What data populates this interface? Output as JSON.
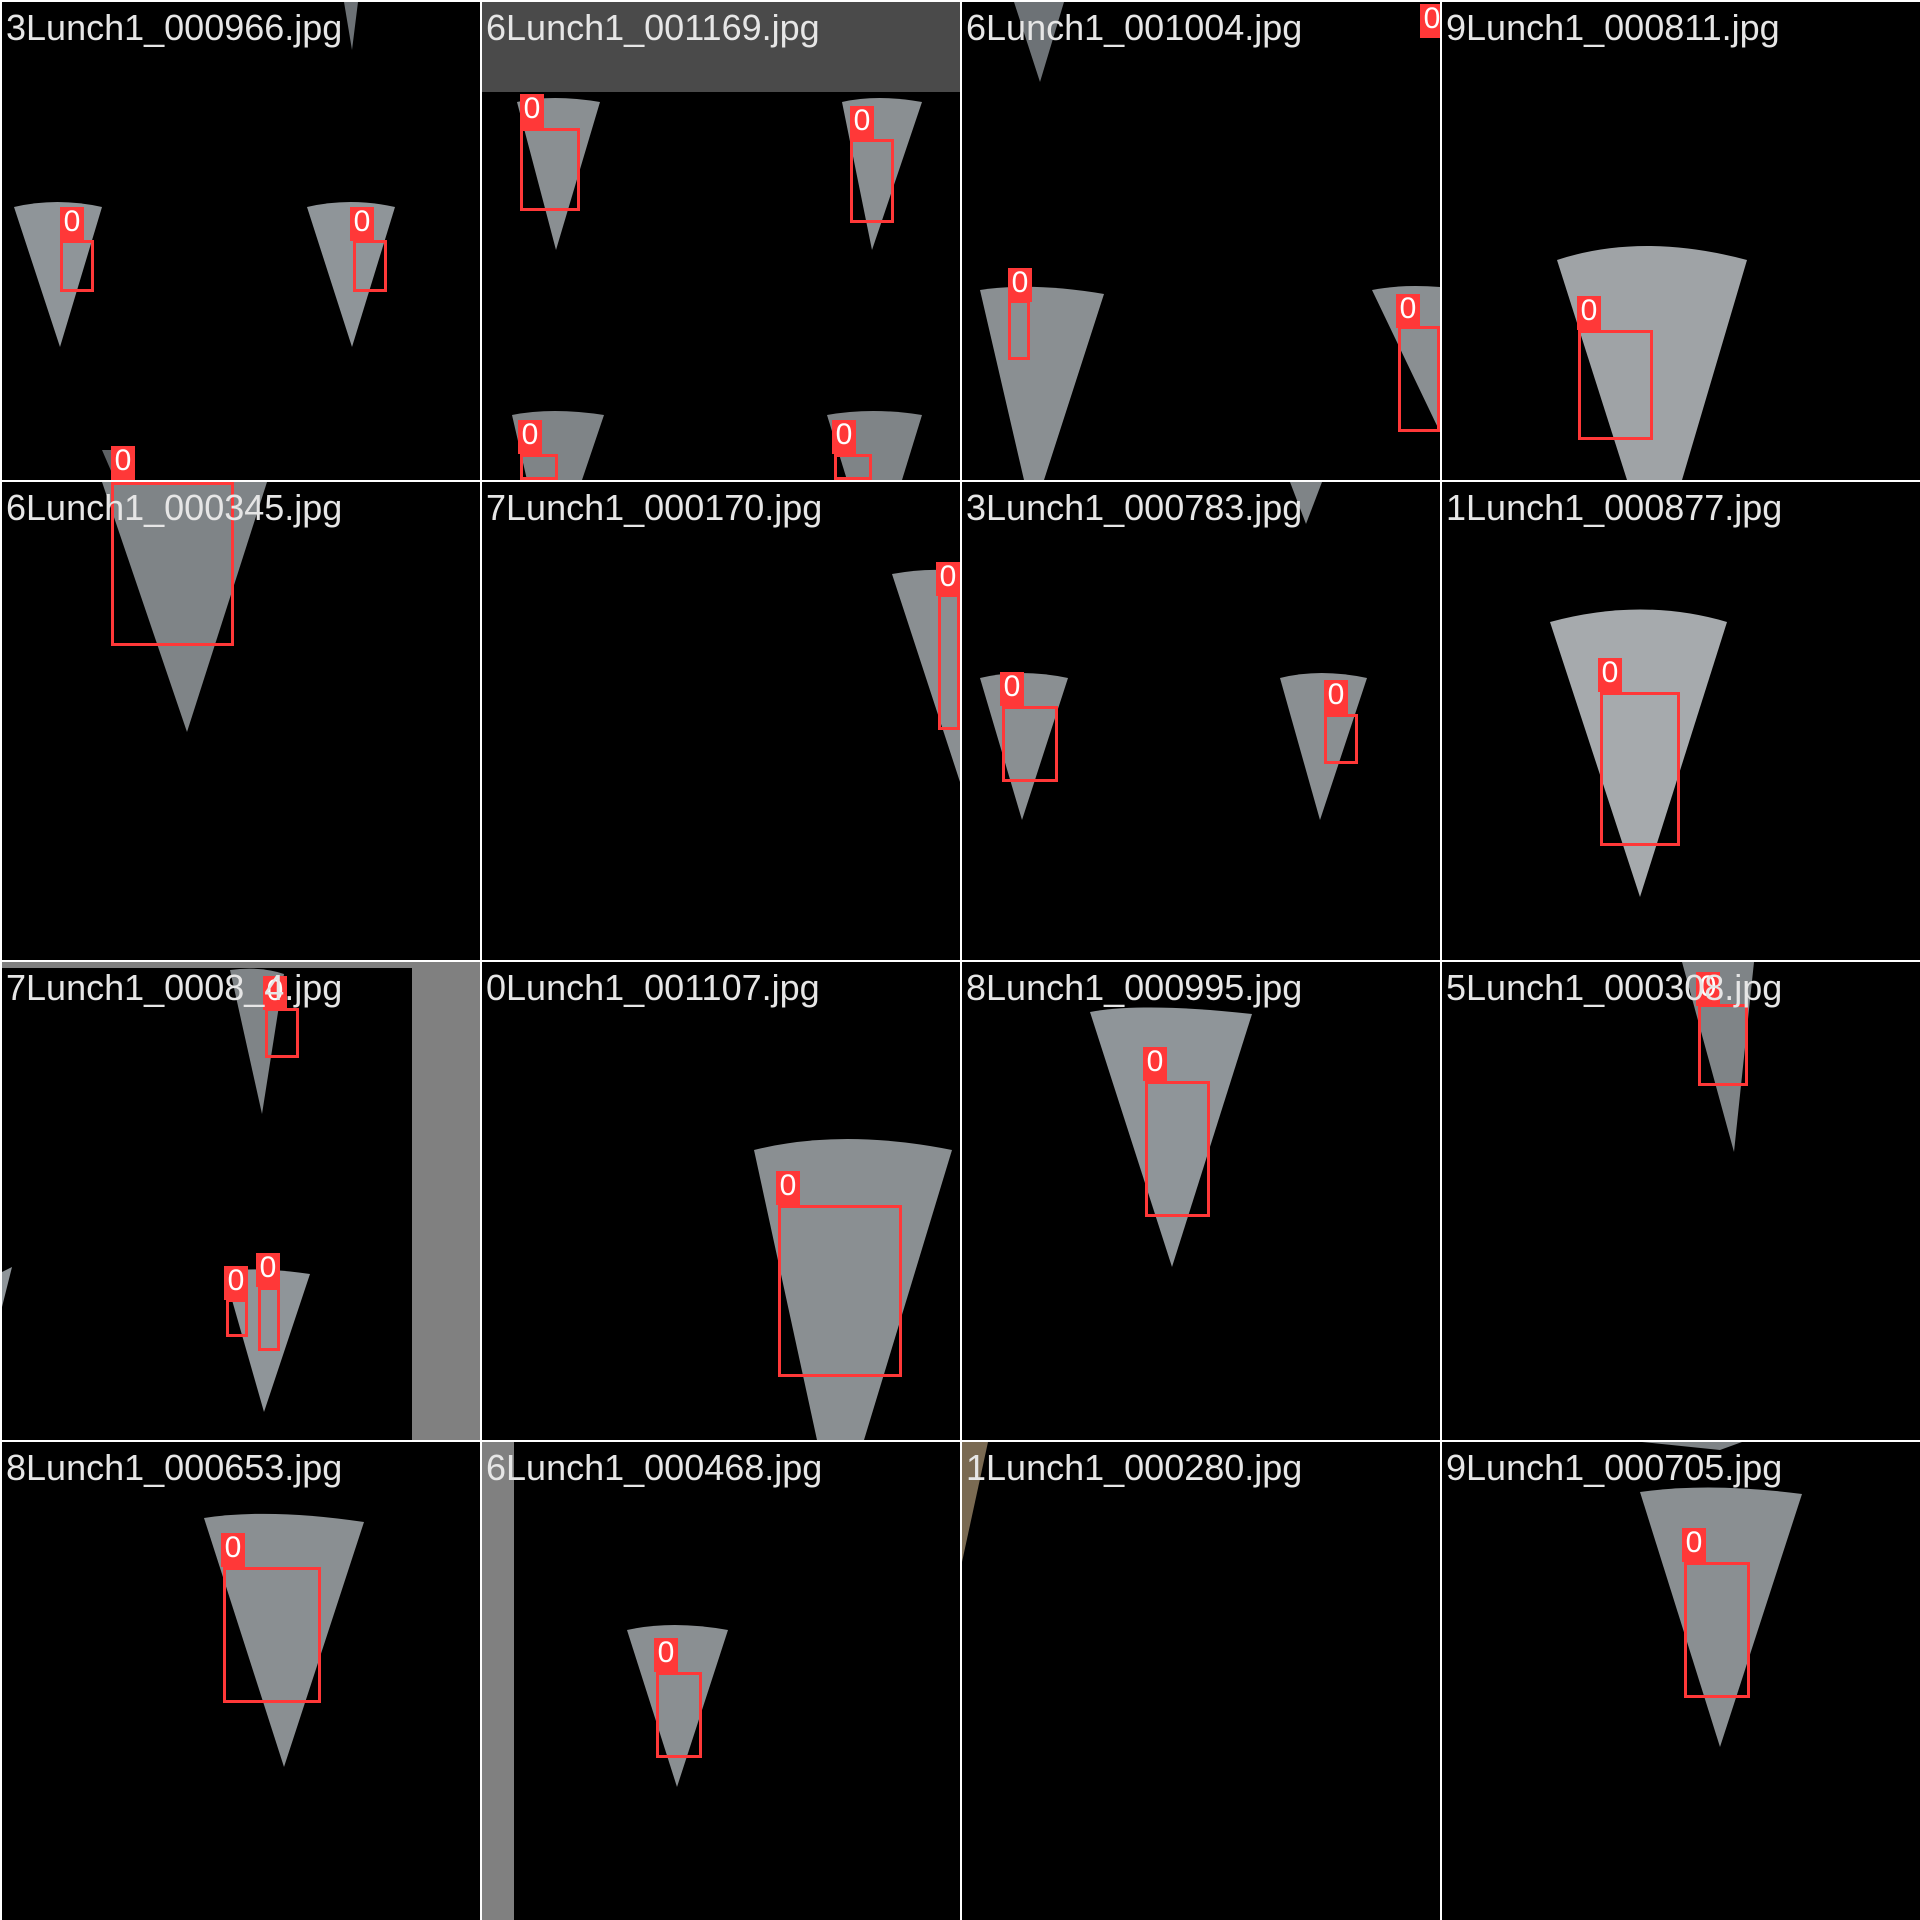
{
  "palette": {
    "box": "#ff3838",
    "label_text": "#ffffff",
    "filename_text": "#e6e6e6",
    "background": "#000000",
    "divider": "#ffffff",
    "pad_gray": "#808080"
  },
  "tiles": [
    {
      "filename": "3Lunch1_000966.jpg",
      "detections": [
        "0",
        "0"
      ]
    },
    {
      "filename": "6Lunch1_001169.jpg",
      "detections": [
        "0",
        "0",
        "0",
        "0"
      ]
    },
    {
      "filename": "6Lunch1_001004.jpg",
      "detections": [
        "0",
        "0",
        "0"
      ]
    },
    {
      "filename": "9Lunch1_000811.jpg",
      "detections": [
        "0"
      ]
    },
    {
      "filename": "6Lunch1_000345.jpg",
      "detections": [
        "0"
      ]
    },
    {
      "filename": "7Lunch1_000170.jpg",
      "detections": [
        "0"
      ]
    },
    {
      "filename": "3Lunch1_000783.jpg",
      "detections": [
        "0",
        "0"
      ]
    },
    {
      "filename": "1Lunch1_000877.jpg",
      "detections": [
        "0"
      ]
    },
    {
      "filename": "7Lunch1_0008_4.jpg",
      "detections": [
        "0",
        "0",
        "0"
      ]
    },
    {
      "filename": "0Lunch1_001107.jpg",
      "detections": [
        "0"
      ]
    },
    {
      "filename": "8Lunch1_000995.jpg",
      "detections": [
        "0"
      ]
    },
    {
      "filename": "5Lunch1_000308.jpg",
      "detections": [
        "0"
      ]
    },
    {
      "filename": "8Lunch1_000653.jpg",
      "detections": [
        "0"
      ]
    },
    {
      "filename": "6Lunch1_000468.jpg",
      "detections": [
        "0"
      ]
    },
    {
      "filename": "1Lunch1_000280.jpg",
      "detections": []
    },
    {
      "filename": "9Lunch1_000705.jpg",
      "detections": [
        "0"
      ]
    }
  ]
}
